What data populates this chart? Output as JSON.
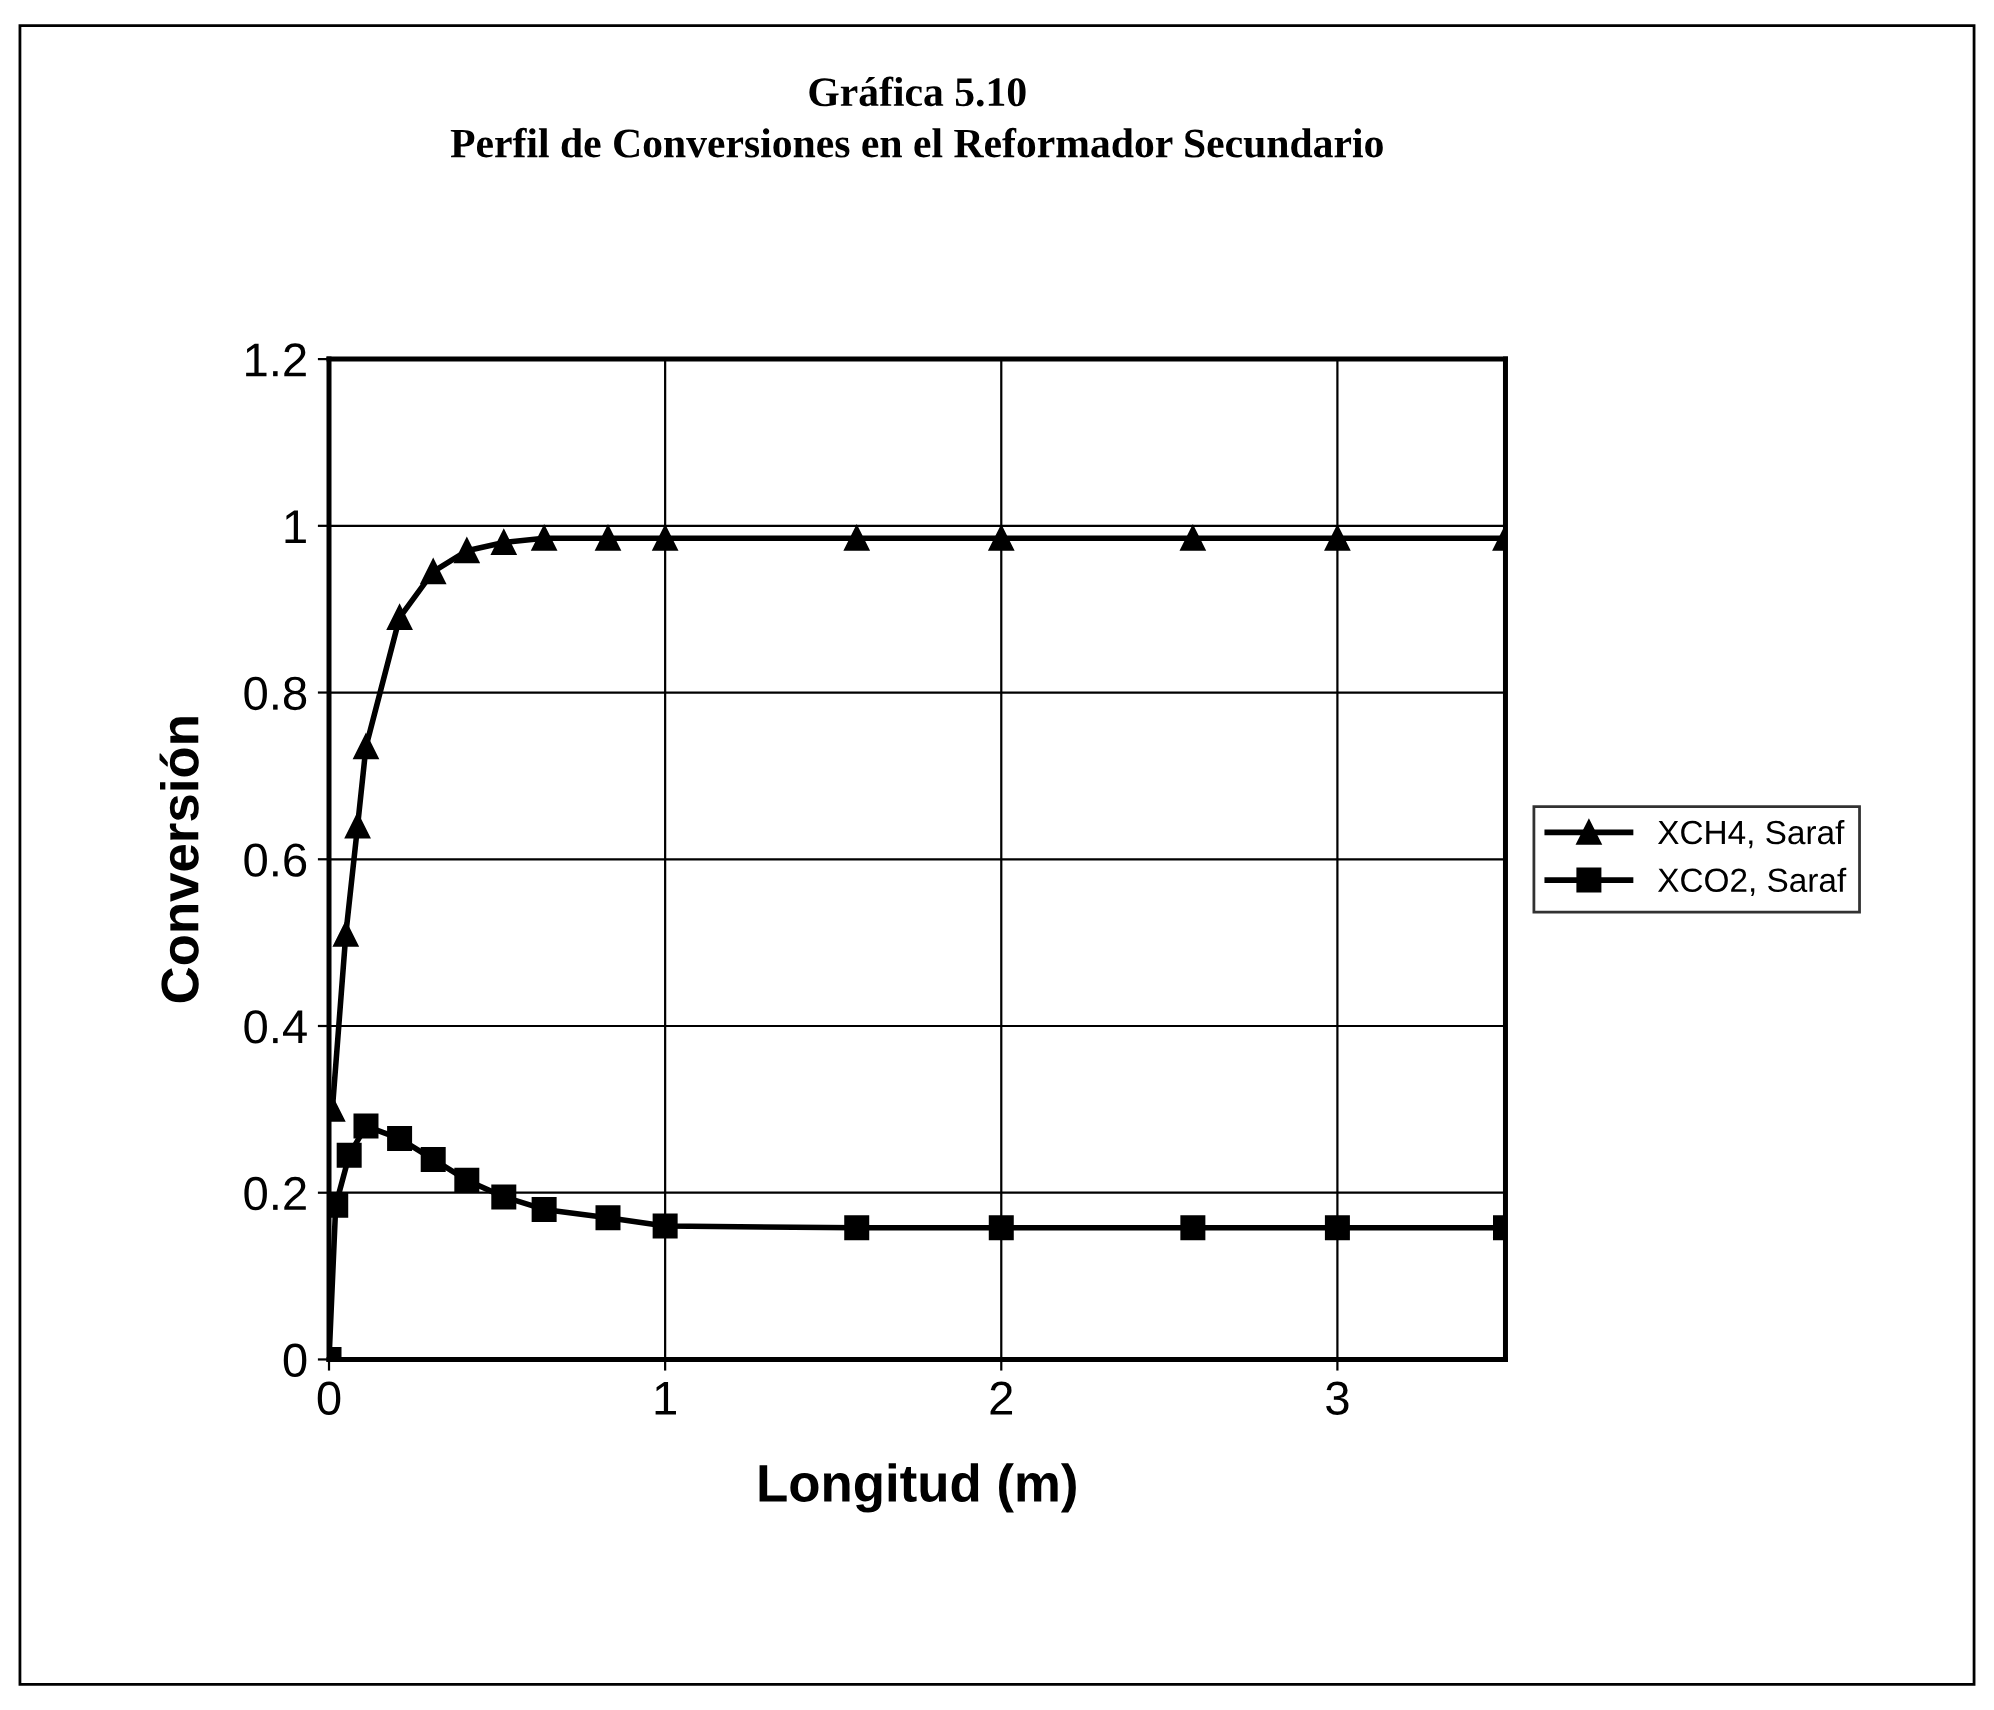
{
  "chart_data": {
    "type": "line",
    "title": "Gráfica 5.10",
    "subtitle": "Perfil de Conversiones en el Reformador Secundario",
    "xlabel": "Longitud (m)",
    "ylabel": "Conversión",
    "xlim": [
      0,
      3.5
    ],
    "xticks": [
      0,
      1,
      2,
      3
    ],
    "ylim": [
      0,
      1.2
    ],
    "yticks": [
      0,
      0.2,
      0.4,
      0.6,
      0.8,
      1,
      1.2
    ],
    "grid": true,
    "legend": "right",
    "series": [
      {
        "name": "XCH4, Saraf",
        "color": "#000000",
        "marker": "triangle",
        "x": [
          0.01,
          0.05,
          0.085,
          0.11,
          0.21,
          0.31,
          0.41,
          0.52,
          0.64,
          0.83,
          1.0,
          1.57,
          2.0,
          2.57,
          3.0,
          3.5
        ],
        "values": [
          0.3,
          0.51,
          0.64,
          0.735,
          0.89,
          0.945,
          0.97,
          0.98,
          0.985,
          0.985,
          0.985,
          0.985,
          0.985,
          0.985,
          0.985,
          0.985
        ]
      },
      {
        "name": "XCO2, Saraf",
        "color": "#000000",
        "marker": "square",
        "x": [
          0,
          0.02,
          0.06,
          0.11,
          0.21,
          0.31,
          0.41,
          0.52,
          0.64,
          0.83,
          1.0,
          1.57,
          2.0,
          2.57,
          3.0,
          3.5
        ],
        "values": [
          0,
          0.185,
          0.245,
          0.28,
          0.265,
          0.24,
          0.215,
          0.195,
          0.18,
          0.17,
          0.16,
          0.158,
          0.158,
          0.158,
          0.158,
          0.158
        ]
      }
    ]
  }
}
